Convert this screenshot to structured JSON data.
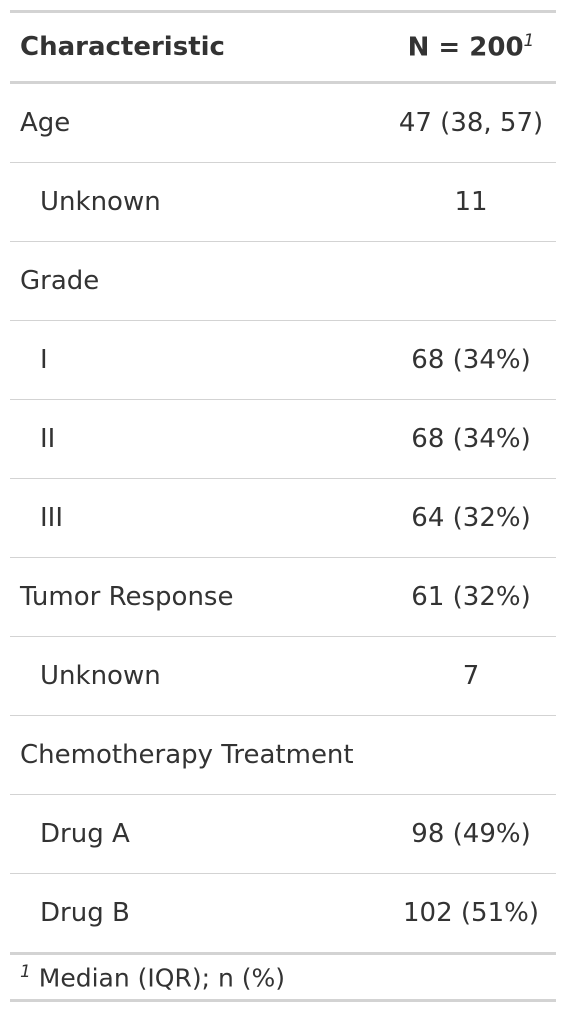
{
  "table": {
    "header": [
      "Characteristic",
      "N = 200"
    ],
    "header_note": "1",
    "rows": [
      [
        "Age",
        "47 (38, 57)"
      ],
      [
        "Unknown",
        "11"
      ],
      [
        "Grade"
      ],
      [
        "I",
        "68 (34%)"
      ],
      [
        "II",
        "68 (34%)"
      ],
      [
        "III",
        "64 (32%)"
      ],
      [
        "Tumor Response",
        "61 (32%)"
      ],
      [
        "Unknown",
        "7"
      ],
      [
        "Chemotherapy Treatment"
      ],
      [
        "Drug A",
        "98 (49%)"
      ],
      [
        "Drug B",
        "102 (51%)"
      ]
    ],
    "footnote": {
      "mark": "1",
      "text": "Median (IQR); n (%)"
    }
  }
}
